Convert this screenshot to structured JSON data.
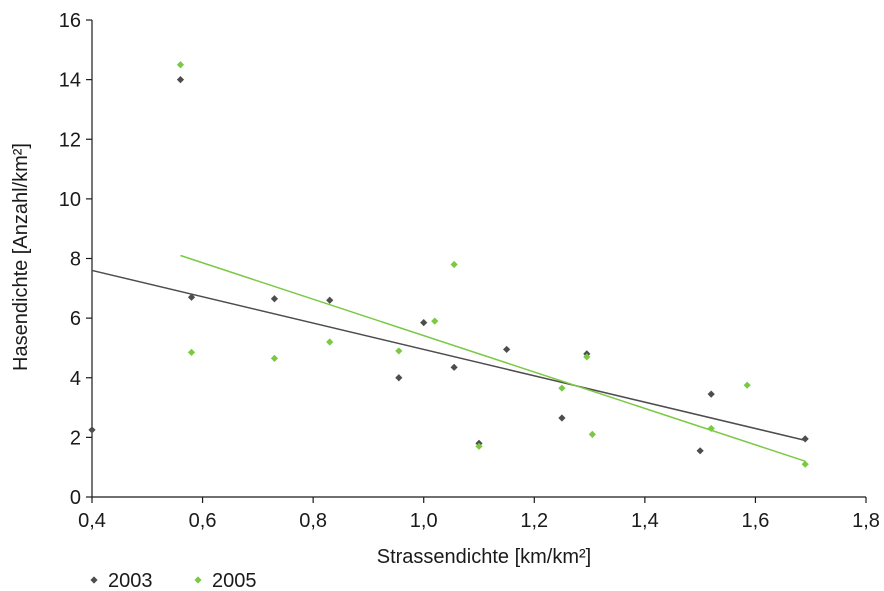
{
  "chart_data": {
    "type": "scatter",
    "title": "",
    "xlabel": "Strassendichte [km/km²]",
    "ylabel": "Hasendichte [Anzahl/km²]",
    "xlim": [
      0.4,
      1.8
    ],
    "ylim": [
      0,
      16
    ],
    "xticks": [
      0.4,
      0.6,
      0.8,
      1.0,
      1.2,
      1.4,
      1.6,
      1.8
    ],
    "xtick_labels": [
      "0,4",
      "0,6",
      "0,8",
      "1,0",
      "1,2",
      "1,4",
      "1,6",
      "1,8"
    ],
    "yticks": [
      0,
      2,
      4,
      6,
      8,
      10,
      12,
      14,
      16
    ],
    "ytick_labels": [
      "0",
      "2",
      "4",
      "6",
      "8",
      "10",
      "12",
      "14",
      "16"
    ],
    "grid": false,
    "legend_position": "bottom-left",
    "series": [
      {
        "name": "2003",
        "color": "#4d4d4d",
        "marker": "diamond",
        "points": [
          [
            0.4,
            2.25
          ],
          [
            0.56,
            14.0
          ],
          [
            0.58,
            6.7
          ],
          [
            0.73,
            6.65
          ],
          [
            0.83,
            6.6
          ],
          [
            0.955,
            4.0
          ],
          [
            1.0,
            5.85
          ],
          [
            1.055,
            4.35
          ],
          [
            1.1,
            1.8
          ],
          [
            1.15,
            4.95
          ],
          [
            1.25,
            2.65
          ],
          [
            1.295,
            4.8
          ],
          [
            1.5,
            1.55
          ],
          [
            1.52,
            3.45
          ],
          [
            1.69,
            1.95
          ]
        ],
        "trendline": {
          "x": [
            0.4,
            1.69
          ],
          "y": [
            7.6,
            1.9
          ]
        }
      },
      {
        "name": "2005",
        "color": "#7ac943",
        "marker": "diamond",
        "points": [
          [
            0.56,
            14.5
          ],
          [
            0.58,
            4.85
          ],
          [
            0.73,
            4.65
          ],
          [
            0.83,
            5.2
          ],
          [
            0.955,
            4.9
          ],
          [
            1.02,
            5.9
          ],
          [
            1.055,
            7.8
          ],
          [
            1.1,
            1.7
          ],
          [
            1.25,
            3.65
          ],
          [
            1.295,
            4.7
          ],
          [
            1.305,
            2.1
          ],
          [
            1.52,
            2.3
          ],
          [
            1.585,
            3.75
          ],
          [
            1.69,
            1.1
          ]
        ],
        "trendline": {
          "x": [
            0.56,
            1.69
          ],
          "y": [
            8.1,
            1.2
          ]
        }
      }
    ]
  }
}
